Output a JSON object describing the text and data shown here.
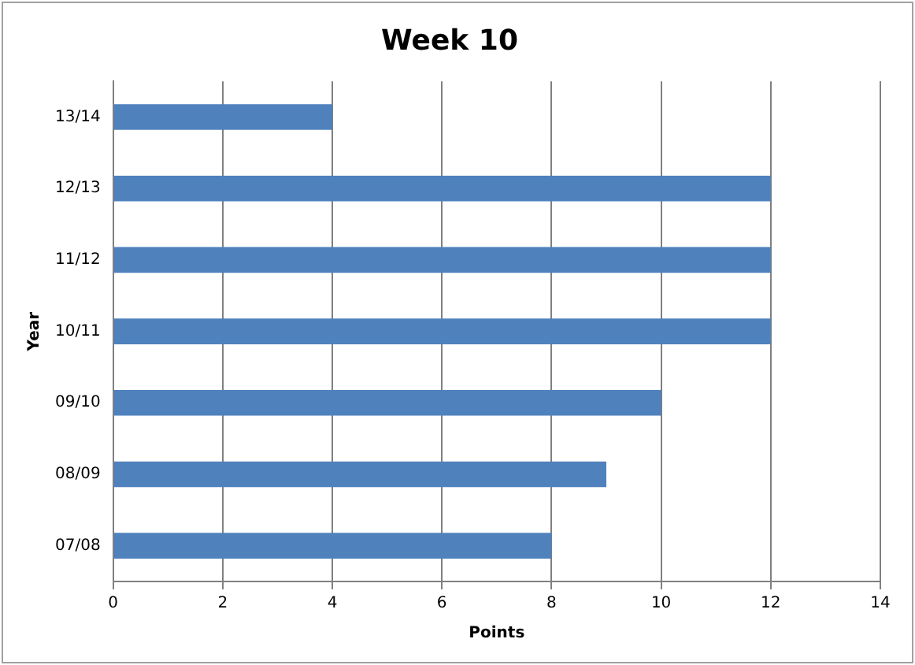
{
  "chart_data": {
    "type": "bar",
    "orientation": "horizontal",
    "title": "Week 10",
    "xlabel": "Points",
    "ylabel": "Year",
    "categories": [
      "13/14",
      "12/13",
      "11/12",
      "10/11",
      "09/10",
      "08/09",
      "07/08"
    ],
    "values": [
      4,
      12,
      12,
      12,
      10,
      9,
      8
    ],
    "color": "#4f81bd",
    "xlim": [
      0,
      14
    ],
    "xticks": [
      0,
      2,
      4,
      6,
      8,
      10,
      12,
      14
    ],
    "grid": "x",
    "legend": false
  }
}
